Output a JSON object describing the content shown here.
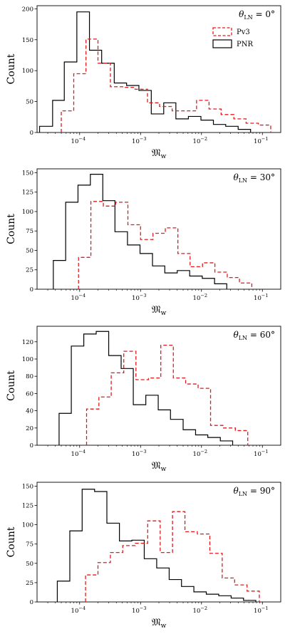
{
  "chart_data": [
    {
      "type": "histogram",
      "title": "θ_LN = 0°",
      "xlabel": "𝔐_w",
      "ylabel": "Count",
      "xscale": "log",
      "xlim": [
        2e-05,
        0.2
      ],
      "ylim": [
        0,
        205
      ],
      "yticks": [
        0,
        50,
        100,
        150,
        200
      ],
      "xticks": [
        "10^-4",
        "10^-3",
        "10^-2",
        "10^-1"
      ],
      "legend_location": "top-right",
      "series": [
        {
          "name": "PNR",
          "color": "#000000",
          "linestyle": "solid",
          "bin_edges": [
            2.2e-05,
            3.6e-05,
            5.6e-05,
            9e-05,
            0.000145,
            0.00023,
            0.00037,
            0.00059,
            0.00094,
            0.0015,
            0.0024,
            0.0038,
            0.0061,
            0.0098,
            0.0157,
            0.025,
            0.04,
            0.064
          ],
          "counts": [
            10,
            52,
            114,
            195,
            133,
            112,
            80,
            76,
            68,
            30,
            48,
            22,
            26,
            20,
            13,
            10,
            5
          ]
        },
        {
          "name": "Pv3",
          "color": "#e31a1c",
          "linestyle": "dashed",
          "bin_edges": [
            5e-05,
            8e-05,
            0.000127,
            0.0002,
            0.00032,
            0.00051,
            0.00081,
            0.0013,
            0.00205,
            0.0033,
            0.0052,
            0.0083,
            0.0133,
            0.021,
            0.034,
            0.054,
            0.086,
            0.137
          ],
          "counts": [
            35,
            95,
            151,
            112,
            74,
            73,
            70,
            48,
            42,
            35,
            35,
            52,
            38,
            29,
            22,
            15,
            12
          ]
        }
      ]
    },
    {
      "type": "histogram",
      "title": "θ_LN = 30°",
      "xlabel": "𝔐_w",
      "ylabel": "Count",
      "xscale": "log",
      "xlim": [
        2e-05,
        0.2
      ],
      "ylim": [
        0,
        155
      ],
      "yticks": [
        0,
        25,
        50,
        75,
        100,
        125,
        150
      ],
      "xticks": [
        "10^-4",
        "10^-3",
        "10^-2",
        "10^-1"
      ],
      "series": [
        {
          "name": "PNR",
          "color": "#000000",
          "linestyle": "solid",
          "bin_edges": [
            3.7e-05,
            5.9e-05,
            9.4e-05,
            0.00015,
            0.00024,
            0.00038,
            0.00061,
            0.00098,
            0.00157,
            0.0025,
            0.004,
            0.0064,
            0.0103,
            0.0164,
            0.026
          ],
          "counts": [
            37,
            112,
            134,
            148,
            114,
            74,
            57,
            46,
            30,
            21,
            24,
            17,
            14,
            7
          ]
        },
        {
          "name": "Pv3",
          "color": "#e31a1c",
          "linestyle": "dashed",
          "bin_edges": [
            9.6e-05,
            0.000153,
            0.000245,
            0.00039,
            0.00062,
            0.001,
            0.0016,
            0.00255,
            0.0041,
            0.0065,
            0.0104,
            0.0166,
            0.0265,
            0.042,
            0.067
          ],
          "counts": [
            41,
            113,
            107,
            112,
            83,
            64,
            72,
            79,
            46,
            29,
            34,
            22,
            15,
            8
          ]
        }
      ]
    },
    {
      "type": "histogram",
      "title": "θ_LN = 60°",
      "xlabel": "𝔐_w",
      "ylabel": "Count",
      "xscale": "log",
      "xlim": [
        2e-05,
        0.2
      ],
      "ylim": [
        0,
        138
      ],
      "yticks": [
        0,
        20,
        40,
        60,
        80,
        100,
        120
      ],
      "xticks": [
        "10^-4",
        "10^-3",
        "10^-2",
        "10^-1"
      ],
      "series": [
        {
          "name": "PNR",
          "color": "#000000",
          "linestyle": "solid",
          "bin_edges": [
            4.6e-05,
            7.3e-05,
            0.000117,
            0.000187,
            0.0003,
            0.00048,
            0.00076,
            0.00122,
            0.00195,
            0.0031,
            0.005,
            0.008,
            0.0127,
            0.0204,
            0.0325
          ],
          "counts": [
            37,
            115,
            129,
            132,
            104,
            89,
            47,
            58,
            41,
            30,
            18,
            12,
            9,
            5
          ]
        },
        {
          "name": "Pv3",
          "color": "#e31a1c",
          "linestyle": "dashed",
          "bin_edges": [
            0.00013,
            0.000207,
            0.00033,
            0.00053,
            0.00084,
            0.00135,
            0.00215,
            0.00345,
            0.0055,
            0.0088,
            0.0141,
            0.0225,
            0.036,
            0.0575
          ],
          "counts": [
            42,
            56,
            84,
            109,
            76,
            78,
            116,
            78,
            71,
            66,
            23,
            20,
            17
          ]
        }
      ]
    },
    {
      "type": "histogram",
      "title": "θ_LN = 90°",
      "xlabel": "𝔐_w",
      "ylabel": "Count",
      "xscale": "log",
      "xlim": [
        2e-05,
        0.2
      ],
      "ylim": [
        0,
        155
      ],
      "yticks": [
        0,
        25,
        50,
        75,
        100,
        125,
        150
      ],
      "xticks": [
        "10^-4",
        "10^-3",
        "10^-2",
        "10^-1"
      ],
      "series": [
        {
          "name": "PNR",
          "color": "#000000",
          "linestyle": "solid",
          "bin_edges": [
            4.3e-05,
            6.9e-05,
            0.00011,
            0.000176,
            0.00028,
            0.00045,
            0.00072,
            0.00115,
            0.00184,
            0.00295,
            0.0047,
            0.0075,
            0.012,
            0.0192,
            0.0307,
            0.049,
            0.078
          ],
          "counts": [
            27,
            92,
            146,
            143,
            102,
            79,
            80,
            56,
            44,
            29,
            20,
            13,
            10,
            8,
            5,
            2
          ]
        },
        {
          "name": "Pv3",
          "color": "#e31a1c",
          "linestyle": "dashed",
          "bin_edges": [
            0.000125,
            0.0002,
            0.00032,
            0.00051,
            0.00082,
            0.00131,
            0.0021,
            0.00335,
            0.00535,
            0.00855,
            0.0137,
            0.0219,
            0.035,
            0.056,
            0.089
          ],
          "counts": [
            35,
            51,
            64,
            73,
            76,
            105,
            64,
            117,
            91,
            88,
            63,
            31,
            22,
            14
          ]
        }
      ]
    }
  ]
}
